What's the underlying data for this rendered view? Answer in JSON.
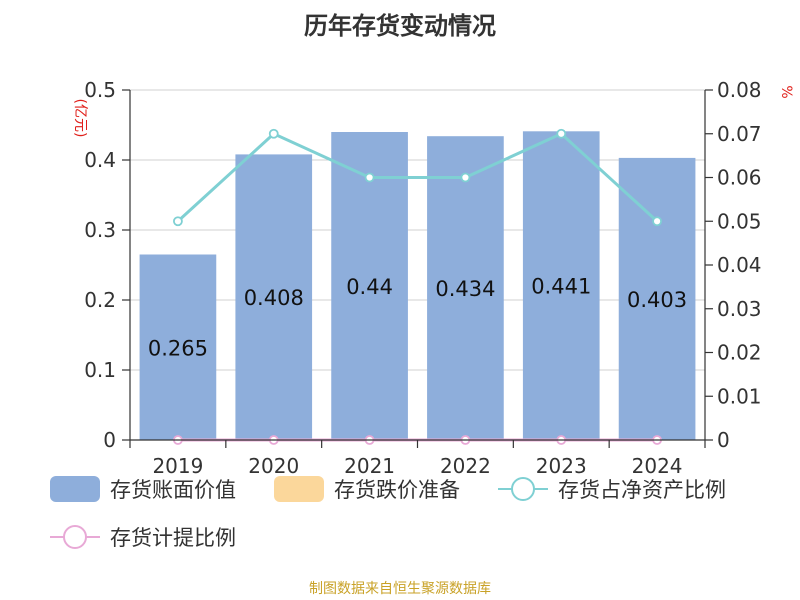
{
  "title": "历年存货变动情况",
  "source": "制图数据来自恒生聚源数据库",
  "chart_data": {
    "type": "bar",
    "categories": [
      "2019",
      "2020",
      "2021",
      "2022",
      "2023",
      "2024"
    ],
    "y_left": {
      "unit": "(亿元)",
      "ylim": [
        0,
        0.5
      ],
      "ticks": [
        "0",
        "0.1",
        "0.2",
        "0.3",
        "0.4",
        "0.5"
      ]
    },
    "y_right": {
      "unit": "%",
      "ylim": [
        0,
        0.08
      ],
      "ticks": [
        "0",
        "0.01",
        "0.02",
        "0.03",
        "0.04",
        "0.05",
        "0.06",
        "0.07",
        "0.08"
      ]
    },
    "series": [
      {
        "name": "存货账面价值",
        "type": "bar",
        "axis": "left",
        "color": "#8eaedb",
        "values": [
          0.265,
          0.408,
          0.44,
          0.434,
          0.441,
          0.403
        ],
        "labels": [
          "0.265",
          "0.408",
          "0.44",
          "0.434",
          "0.441",
          "0.403"
        ]
      },
      {
        "name": "存货跌价准备",
        "type": "bar",
        "axis": "left",
        "color": "#fbd79b",
        "values": [
          0,
          0,
          0,
          0,
          0,
          0
        ]
      },
      {
        "name": "存货占净资产比例",
        "type": "line",
        "axis": "right",
        "color": "#7fd0d3",
        "values": [
          0.05,
          0.07,
          0.06,
          0.06,
          0.07,
          0.05
        ]
      },
      {
        "name": "存货计提比例",
        "type": "line",
        "axis": "right",
        "color": "#e8a9d6",
        "values": [
          0,
          0,
          0,
          0,
          0,
          0
        ]
      }
    ],
    "grid": true,
    "legend": "bottom"
  }
}
